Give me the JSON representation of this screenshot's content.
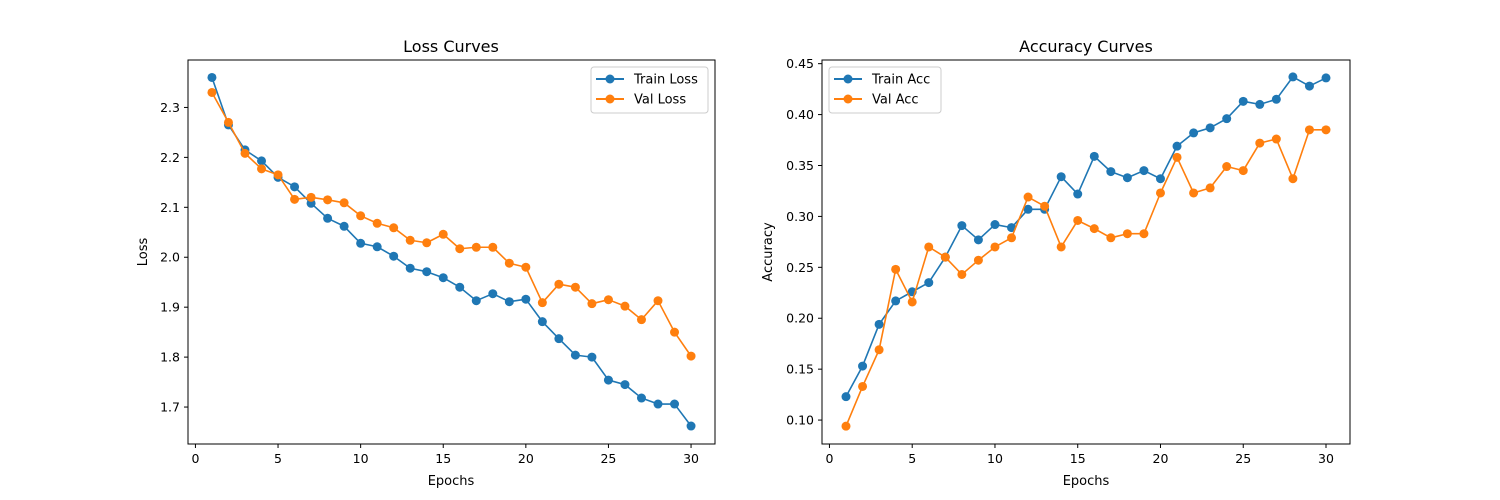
{
  "chart_data": [
    {
      "type": "line",
      "title": "Loss Curves",
      "xlabel": "Epochs",
      "ylabel": "Loss",
      "xlim": [
        -0.45,
        31.45
      ],
      "ylim": [
        1.626,
        2.395
      ],
      "xticks": [
        0,
        5,
        10,
        15,
        20,
        25,
        30
      ],
      "yticks": [
        1.7,
        1.8,
        1.9,
        2.0,
        2.1,
        2.2,
        2.3
      ],
      "ytick_decimals": 1,
      "legend_position": "upper right",
      "grid": false,
      "x": [
        1,
        2,
        3,
        4,
        5,
        6,
        7,
        8,
        9,
        10,
        11,
        12,
        13,
        14,
        15,
        16,
        17,
        18,
        19,
        20,
        21,
        22,
        23,
        24,
        25,
        26,
        27,
        28,
        29,
        30
      ],
      "series": [
        {
          "name": "Train Loss",
          "color": "#1f77b4",
          "values": [
            2.36,
            2.265,
            2.215,
            2.193,
            2.16,
            2.141,
            2.108,
            2.078,
            2.062,
            2.028,
            2.021,
            2.002,
            1.978,
            1.971,
            1.959,
            1.94,
            1.913,
            1.927,
            1.911,
            1.916,
            1.871,
            1.837,
            1.804,
            1.8,
            1.754,
            1.745,
            1.718,
            1.706,
            1.706,
            1.662
          ]
        },
        {
          "name": "Val Loss",
          "color": "#ff7f0e",
          "values": [
            2.33,
            2.27,
            2.208,
            2.177,
            2.165,
            2.116,
            2.12,
            2.115,
            2.109,
            2.083,
            2.068,
            2.059,
            2.034,
            2.029,
            2.046,
            2.017,
            2.02,
            2.02,
            1.988,
            1.98,
            1.909,
            1.946,
            1.94,
            1.907,
            1.915,
            1.902,
            1.875,
            1.913,
            1.85,
            1.802
          ]
        }
      ]
    },
    {
      "type": "line",
      "title": "Accuracy Curves",
      "xlabel": "Epochs",
      "ylabel": "Accuracy",
      "xlim": [
        -0.45,
        31.45
      ],
      "ylim": [
        0.0765,
        0.4536
      ],
      "xticks": [
        0,
        5,
        10,
        15,
        20,
        25,
        30
      ],
      "yticks": [
        0.1,
        0.15,
        0.2,
        0.25,
        0.3,
        0.35,
        0.4,
        0.45
      ],
      "ytick_decimals": 2,
      "legend_position": "upper left",
      "grid": false,
      "x": [
        1,
        2,
        3,
        4,
        5,
        6,
        7,
        8,
        9,
        10,
        11,
        12,
        13,
        14,
        15,
        16,
        17,
        18,
        19,
        20,
        21,
        22,
        23,
        24,
        25,
        26,
        27,
        28,
        29,
        30
      ],
      "series": [
        {
          "name": "Train Acc",
          "color": "#1f77b4",
          "values": [
            0.123,
            0.153,
            0.194,
            0.217,
            0.226,
            0.235,
            0.26,
            0.291,
            0.277,
            0.292,
            0.289,
            0.307,
            0.307,
            0.339,
            0.322,
            0.359,
            0.344,
            0.338,
            0.345,
            0.337,
            0.369,
            0.382,
            0.387,
            0.396,
            0.413,
            0.41,
            0.415,
            0.437,
            0.428,
            0.436
          ]
        },
        {
          "name": "Val Acc",
          "color": "#ff7f0e",
          "values": [
            0.094,
            0.133,
            0.169,
            0.248,
            0.216,
            0.27,
            0.26,
            0.243,
            0.257,
            0.27,
            0.279,
            0.319,
            0.31,
            0.27,
            0.296,
            0.288,
            0.279,
            0.283,
            0.283,
            0.323,
            0.358,
            0.323,
            0.328,
            0.349,
            0.345,
            0.372,
            0.376,
            0.337,
            0.385,
            0.385
          ]
        }
      ]
    }
  ]
}
